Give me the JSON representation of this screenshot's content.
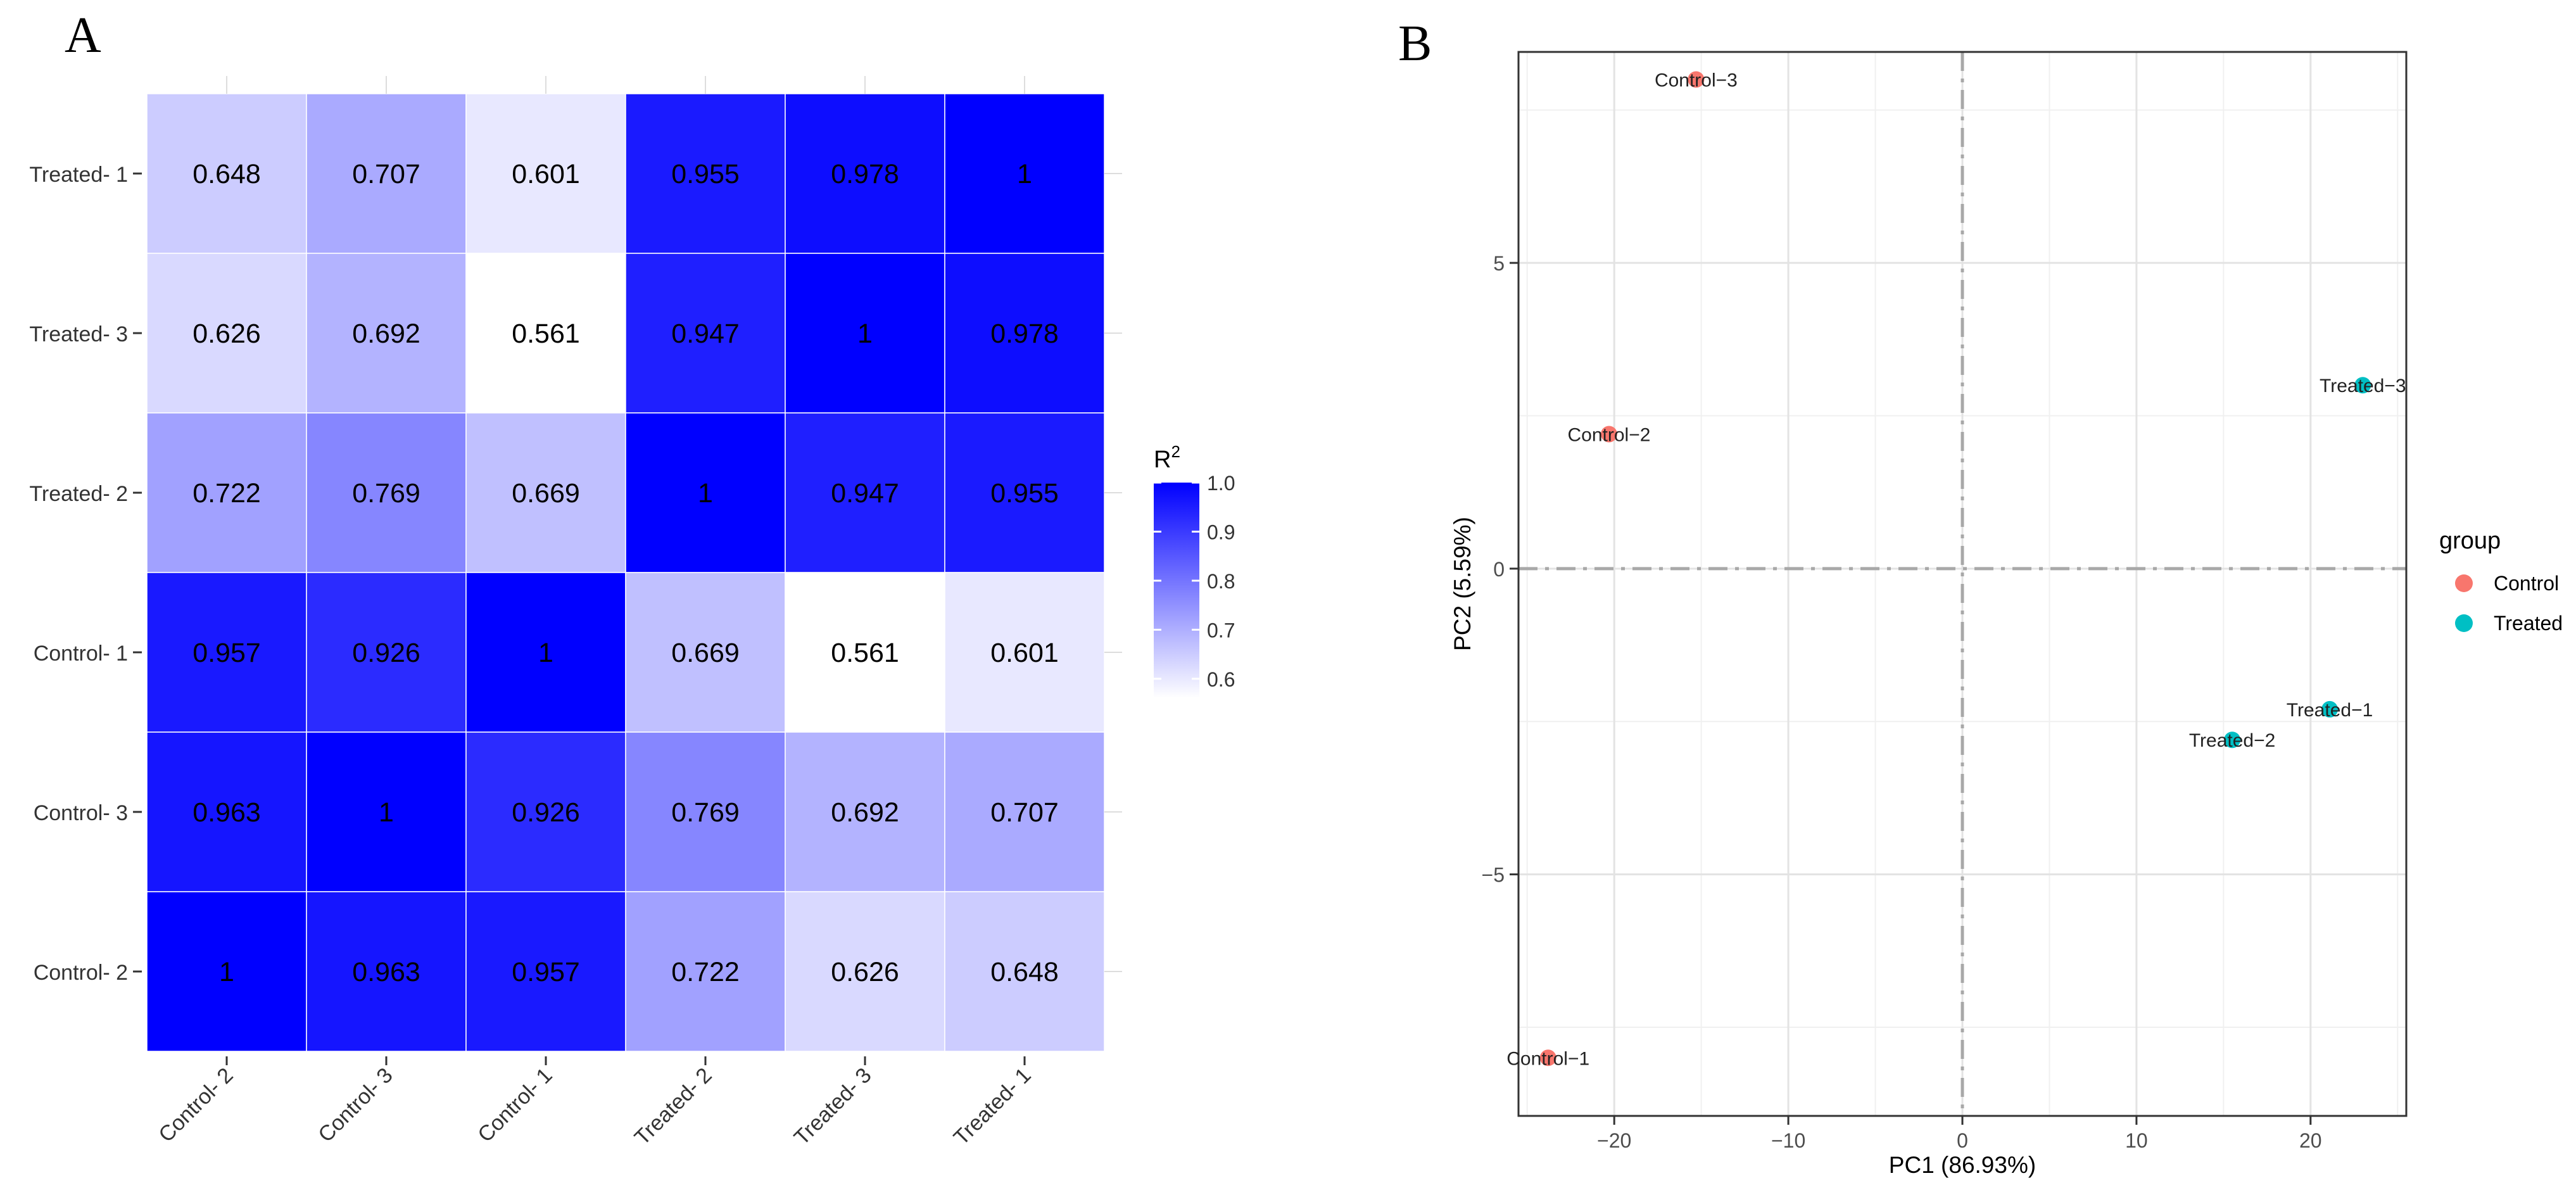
{
  "chart_data": [
    {
      "type": "heatmap",
      "panel_label": "A",
      "rows": [
        "Treated-1",
        "Treated-3",
        "Treated-2",
        "Control-1",
        "Control-3",
        "Control-2"
      ],
      "columns": [
        "Control-2",
        "Control-3",
        "Control-1",
        "Treated-2",
        "Treated-3",
        "Treated-1"
      ],
      "values": [
        [
          0.648,
          0.707,
          0.601,
          0.955,
          0.978,
          1
        ],
        [
          0.626,
          0.692,
          0.561,
          0.947,
          1,
          0.978
        ],
        [
          0.722,
          0.769,
          0.669,
          1,
          0.947,
          0.955
        ],
        [
          0.957,
          0.926,
          1,
          0.669,
          0.561,
          0.601
        ],
        [
          0.963,
          1,
          0.926,
          0.769,
          0.692,
          0.707
        ],
        [
          1,
          0.963,
          0.957,
          0.722,
          0.626,
          0.648
        ]
      ],
      "colorbar": {
        "title": "R",
        "title_superscript": "2",
        "min": 0.561,
        "max": 1.0,
        "low_color": "#ffffff",
        "high_color": "#0000ff",
        "ticks": [
          1.0,
          0.9,
          0.8,
          0.7,
          0.6
        ],
        "tick_labels": [
          "1.0",
          "0.9",
          "0.8",
          "0.7",
          "0.6"
        ]
      }
    },
    {
      "type": "scatter",
      "panel_label": "B",
      "xlabel": "PC1 (86.93%)",
      "ylabel": "PC2 (5.59%)",
      "xlim": [
        -25.5,
        25.5
      ],
      "ylim": [
        -8.95,
        8.45
      ],
      "xticks": [
        -20,
        -10,
        0,
        10,
        20
      ],
      "xtick_labels": [
        "−20",
        "−10",
        "0",
        "10",
        "20"
      ],
      "yticks": [
        -5,
        0,
        5
      ],
      "ytick_labels": [
        "−5",
        "0",
        "5"
      ],
      "legend": {
        "title": "group",
        "placement": "right",
        "entries": [
          {
            "name": "Control",
            "color": "#f8766d"
          },
          {
            "name": "Treated",
            "color": "#00bfc4"
          }
        ]
      },
      "points": [
        {
          "label": "Control-1",
          "display": "Control−1",
          "group": "Control",
          "x": -23.8,
          "y": -8.0
        },
        {
          "label": "Control-2",
          "display": "Control−2",
          "group": "Control",
          "x": -20.3,
          "y": 2.2
        },
        {
          "label": "Control-3",
          "display": "Control−3",
          "group": "Control",
          "x": -15.3,
          "y": 8.0
        },
        {
          "label": "Treated-1",
          "display": "Treated−1",
          "group": "Treated",
          "x": 21.1,
          "y": -2.3
        },
        {
          "label": "Treated-2",
          "display": "Treated−2",
          "group": "Treated",
          "x": 15.5,
          "y": -2.8
        },
        {
          "label": "Treated-3",
          "display": "Treated−3",
          "group": "Treated",
          "x": 23.0,
          "y": 3.0
        }
      ]
    }
  ]
}
